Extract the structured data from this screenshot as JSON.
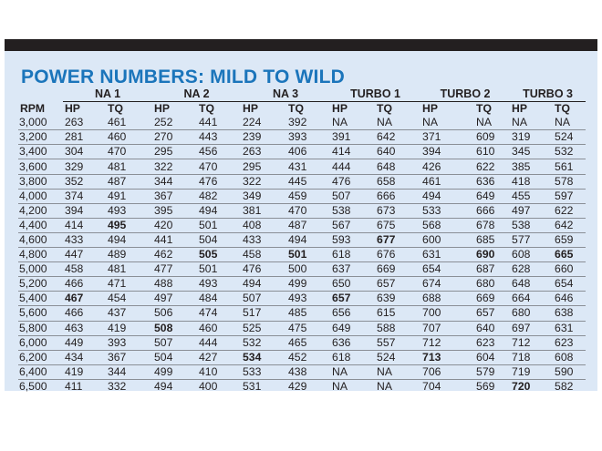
{
  "title": "POWER NUMBERS: MILD TO WILD",
  "groups": [
    "NA 1",
    "NA 2",
    "NA 3",
    "TURBO 1",
    "TURBO 2",
    "TURBO 3"
  ],
  "columns": [
    "RPM",
    "HP",
    "TQ",
    "HP",
    "TQ",
    "HP",
    "TQ",
    "HP",
    "TQ",
    "HP",
    "TQ",
    "HP",
    "TQ"
  ],
  "rows": [
    [
      "3,000",
      "263",
      "461",
      "252",
      "441",
      "224",
      "392",
      "NA",
      "NA",
      "NA",
      "NA",
      "NA",
      "NA"
    ],
    [
      "3,200",
      "281",
      "460",
      "270",
      "443",
      "239",
      "393",
      "391",
      "642",
      "371",
      "609",
      "319",
      "524"
    ],
    [
      "3,400",
      "304",
      "470",
      "295",
      "456",
      "263",
      "406",
      "414",
      "640",
      "394",
      "610",
      "345",
      "532"
    ],
    [
      "3,600",
      "329",
      "481",
      "322",
      "470",
      "295",
      "431",
      "444",
      "648",
      "426",
      "622",
      "385",
      "561"
    ],
    [
      "3,800",
      "352",
      "487",
      "344",
      "476",
      "322",
      "445",
      "476",
      "658",
      "461",
      "636",
      "418",
      "578"
    ],
    [
      "4,000",
      "374",
      "491",
      "367",
      "482",
      "349",
      "459",
      "507",
      "666",
      "494",
      "649",
      "455",
      "597"
    ],
    [
      "4,200",
      "394",
      "493",
      "395",
      "494",
      "381",
      "470",
      "538",
      "673",
      "533",
      "666",
      "497",
      "622"
    ],
    [
      "4,400",
      "414",
      "495",
      "420",
      "501",
      "408",
      "487",
      "567",
      "675",
      "568",
      "678",
      "538",
      "642"
    ],
    [
      "4,600",
      "433",
      "494",
      "441",
      "504",
      "433",
      "494",
      "593",
      "677",
      "600",
      "685",
      "577",
      "659"
    ],
    [
      "4,800",
      "447",
      "489",
      "462",
      "505",
      "458",
      "501",
      "618",
      "676",
      "631",
      "690",
      "608",
      "665"
    ],
    [
      "5,000",
      "458",
      "481",
      "477",
      "501",
      "476",
      "500",
      "637",
      "669",
      "654",
      "687",
      "628",
      "660"
    ],
    [
      "5,200",
      "466",
      "471",
      "488",
      "493",
      "494",
      "499",
      "650",
      "657",
      "674",
      "680",
      "648",
      "654"
    ],
    [
      "5,400",
      "467",
      "454",
      "497",
      "484",
      "507",
      "493",
      "657",
      "639",
      "688",
      "669",
      "664",
      "646"
    ],
    [
      "5,600",
      "466",
      "437",
      "506",
      "474",
      "517",
      "485",
      "656",
      "615",
      "700",
      "657",
      "680",
      "638"
    ],
    [
      "5,800",
      "463",
      "419",
      "508",
      "460",
      "525",
      "475",
      "649",
      "588",
      "707",
      "640",
      "697",
      "631"
    ],
    [
      "6,000",
      "449",
      "393",
      "507",
      "444",
      "532",
      "465",
      "636",
      "557",
      "712",
      "623",
      "712",
      "623"
    ],
    [
      "6,200",
      "434",
      "367",
      "504",
      "427",
      "534",
      "452",
      "618",
      "524",
      "713",
      "604",
      "718",
      "608"
    ],
    [
      "6,400",
      "419",
      "344",
      "499",
      "410",
      "533",
      "438",
      "NA",
      "NA",
      "706",
      "579",
      "719",
      "590"
    ],
    [
      "6,500",
      "411",
      "332",
      "494",
      "400",
      "531",
      "429",
      "NA",
      "NA",
      "704",
      "569",
      "720",
      "582"
    ]
  ],
  "bold_cells": [
    [
      7,
      2
    ],
    [
      9,
      4
    ],
    [
      8,
      8
    ],
    [
      9,
      6
    ],
    [
      9,
      10
    ],
    [
      9,
      12
    ],
    [
      12,
      1
    ],
    [
      12,
      7
    ],
    [
      14,
      3
    ],
    [
      16,
      5
    ],
    [
      16,
      9
    ],
    [
      18,
      11
    ]
  ]
}
